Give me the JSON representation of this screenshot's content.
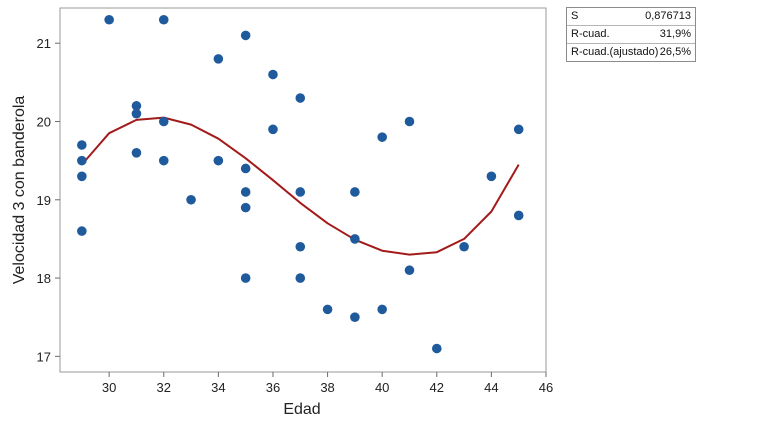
{
  "chart_data": {
    "type": "scatter",
    "xlabel": "Edad",
    "ylabel": "Velocidad 3 con banderola",
    "xlim": [
      28.2,
      46
    ],
    "ylim": [
      16.8,
      21.45
    ],
    "xticks": [
      30,
      32,
      34,
      36,
      38,
      40,
      42,
      44,
      46
    ],
    "yticks": [
      17,
      18,
      19,
      20,
      21
    ],
    "grid": false,
    "colors": {
      "points": "#1f5b9c",
      "fit_line": "#a31a1a"
    },
    "points": [
      {
        "x": 29,
        "y": 19.7
      },
      {
        "x": 29,
        "y": 19.5
      },
      {
        "x": 29,
        "y": 19.3
      },
      {
        "x": 29,
        "y": 18.6
      },
      {
        "x": 30,
        "y": 21.3
      },
      {
        "x": 31,
        "y": 20.2
      },
      {
        "x": 31,
        "y": 20.1
      },
      {
        "x": 31,
        "y": 19.6
      },
      {
        "x": 32,
        "y": 21.3
      },
      {
        "x": 32,
        "y": 20.0
      },
      {
        "x": 32,
        "y": 19.5
      },
      {
        "x": 33,
        "y": 19.0
      },
      {
        "x": 34,
        "y": 20.8
      },
      {
        "x": 34,
        "y": 19.5
      },
      {
        "x": 35,
        "y": 21.1
      },
      {
        "x": 35,
        "y": 19.4
      },
      {
        "x": 35,
        "y": 19.1
      },
      {
        "x": 35,
        "y": 18.9
      },
      {
        "x": 35,
        "y": 18.0
      },
      {
        "x": 36,
        "y": 20.6
      },
      {
        "x": 36,
        "y": 19.9
      },
      {
        "x": 37,
        "y": 20.3
      },
      {
        "x": 37,
        "y": 19.1
      },
      {
        "x": 37,
        "y": 18.4
      },
      {
        "x": 37,
        "y": 18.0
      },
      {
        "x": 38,
        "y": 17.6
      },
      {
        "x": 39,
        "y": 19.1
      },
      {
        "x": 39,
        "y": 18.5
      },
      {
        "x": 39,
        "y": 17.5
      },
      {
        "x": 40,
        "y": 19.8
      },
      {
        "x": 40,
        "y": 17.6
      },
      {
        "x": 41,
        "y": 20.0
      },
      {
        "x": 41,
        "y": 18.1
      },
      {
        "x": 42,
        "y": 17.1
      },
      {
        "x": 43,
        "y": 18.4
      },
      {
        "x": 44,
        "y": 19.3
      },
      {
        "x": 45,
        "y": 19.9
      },
      {
        "x": 45,
        "y": 18.8
      }
    ],
    "fit_curve": [
      {
        "x": 29,
        "y": 19.45
      },
      {
        "x": 29.5,
        "y": 19.65
      },
      {
        "x": 30,
        "y": 19.85
      },
      {
        "x": 31,
        "y": 20.02
      },
      {
        "x": 32,
        "y": 20.05
      },
      {
        "x": 33,
        "y": 19.96
      },
      {
        "x": 34,
        "y": 19.78
      },
      {
        "x": 35,
        "y": 19.53
      },
      {
        "x": 36,
        "y": 19.25
      },
      {
        "x": 37,
        "y": 18.96
      },
      {
        "x": 38,
        "y": 18.7
      },
      {
        "x": 39,
        "y": 18.49
      },
      {
        "x": 40,
        "y": 18.35
      },
      {
        "x": 41,
        "y": 18.3
      },
      {
        "x": 42,
        "y": 18.33
      },
      {
        "x": 43,
        "y": 18.5
      },
      {
        "x": 44,
        "y": 18.85
      },
      {
        "x": 45,
        "y": 19.45
      }
    ]
  },
  "stats": [
    {
      "label": "S",
      "value": "0,876713"
    },
    {
      "label": "R-cuad.",
      "value": "31,9%"
    },
    {
      "label": "R-cuad.(ajustado)",
      "value": "26,5%"
    }
  ]
}
